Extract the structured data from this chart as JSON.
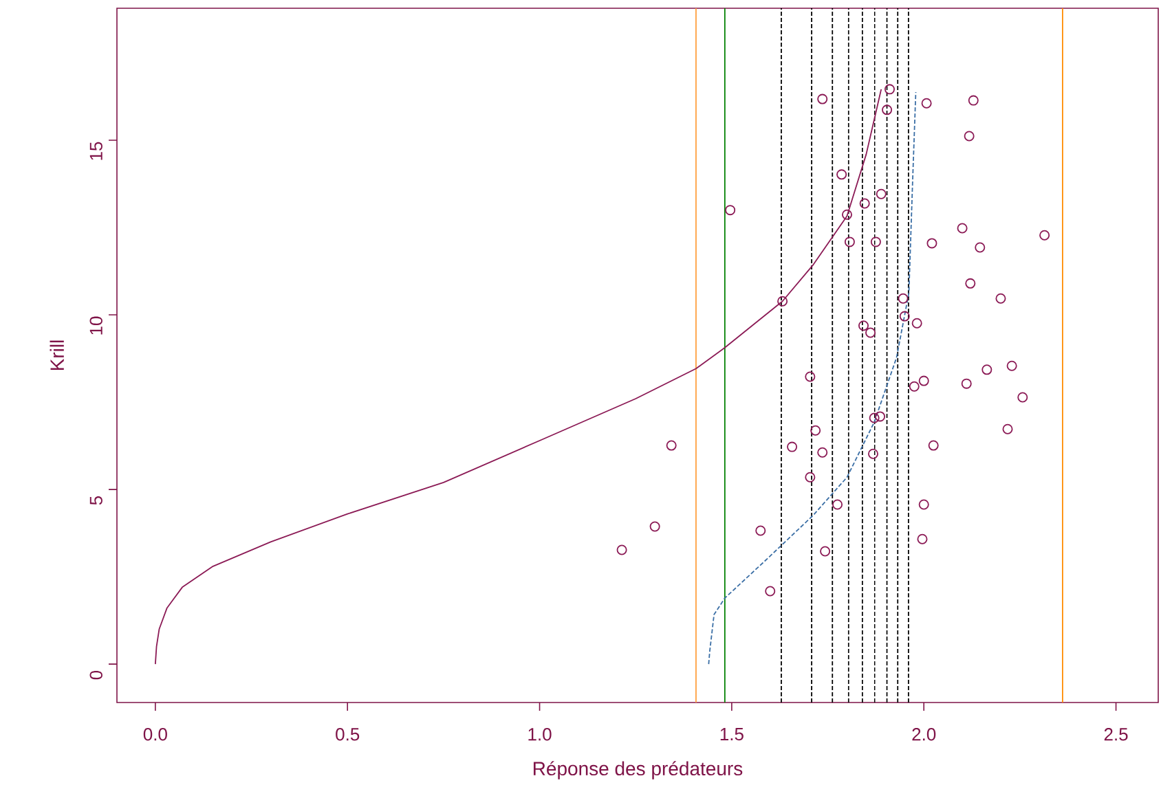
{
  "chart_data": {
    "type": "scatter",
    "xlabel": "Réponse des prédateurs",
    "ylabel": "Krill",
    "xlim": [
      -0.1,
      2.61
    ],
    "ylim": [
      -1.1,
      18.78
    ],
    "xticks": [
      {
        "value": 0,
        "label": "0.0"
      },
      {
        "value": 0.5,
        "label": "0.5"
      },
      {
        "value": 1,
        "label": "1.0"
      },
      {
        "value": 1.5,
        "label": "1.5"
      },
      {
        "value": 2,
        "label": "2.0"
      },
      {
        "value": 2.5,
        "label": "2.5"
      }
    ],
    "yticks": [
      0,
      5,
      10,
      15
    ],
    "grid": false,
    "series": [
      {
        "color": "#8b1a55",
        "marker": "circle",
        "x": [
          1.496,
          1.911,
          1.736,
          1.904,
          2.007,
          2.129,
          2.118,
          1.786,
          1.889,
          1.846,
          1.8,
          1.807,
          1.875,
          2.1,
          2.021,
          2.146,
          2.314,
          1.632,
          1.946,
          1.95,
          1.843,
          1.861,
          1.982,
          2.121,
          2.2,
          1.704,
          1.975,
          2.0,
          2.164,
          2.229,
          2.111,
          2.257,
          1.718,
          1.871,
          1.886,
          2.025,
          2.218,
          1.343,
          1.657,
          1.736,
          1.868,
          1.704,
          1.3,
          1.214,
          1.575,
          1.775,
          1.743,
          1.6,
          2.0,
          1.996
        ],
        "values": [
          13.0,
          16.46,
          16.18,
          15.87,
          16.06,
          16.14,
          15.12,
          14.02,
          13.46,
          13.19,
          12.87,
          12.09,
          12.09,
          12.48,
          12.05,
          11.93,
          12.28,
          10.39,
          10.47,
          9.96,
          9.69,
          9.49,
          9.76,
          10.9,
          10.47,
          8.23,
          7.95,
          8.11,
          8.43,
          8.54,
          8.03,
          7.64,
          6.69,
          7.05,
          7.09,
          6.26,
          6.73,
          6.26,
          6.22,
          6.06,
          6.02,
          5.35,
          3.94,
          3.27,
          3.82,
          4.57,
          3.23,
          2.09,
          4.57,
          3.58
        ]
      },
      {
        "type": "line",
        "color": "#8b1a55",
        "marker": "none",
        "line_style": "solid",
        "x": [
          0,
          0.003,
          0.01,
          0.03,
          0.07,
          0.15,
          0.3,
          0.5,
          0.75,
          1.0,
          1.25,
          1.407,
          1.482,
          1.632,
          1.711,
          1.8,
          1.85,
          1.889
        ],
        "values": [
          0,
          0.5,
          1.0,
          1.6,
          2.2,
          2.8,
          3.5,
          4.3,
          5.2,
          6.4,
          7.6,
          8.46,
          9.06,
          10.39,
          11.42,
          12.83,
          14.6,
          16.46
        ]
      },
      {
        "type": "line",
        "color": "#3a6ea5",
        "marker": "none",
        "line_style": "dashed",
        "x": [
          1.44,
          1.443,
          1.454,
          1.482,
          1.586,
          1.711,
          1.8,
          1.871,
          1.929,
          1.961,
          1.971,
          1.979
        ],
        "values": [
          0,
          0.39,
          1.42,
          1.89,
          2.95,
          4.25,
          5.35,
          6.93,
          8.78,
          10.63,
          13.9,
          16.38
        ]
      }
    ],
    "ref_lines": [
      {
        "axis": "x",
        "value": 1.407,
        "color": "#ffa040",
        "line_style": "solid"
      },
      {
        "axis": "x",
        "value": 2.361,
        "color": "#ff8c00",
        "line_style": "solid"
      },
      {
        "axis": "x",
        "value": 1.482,
        "color": "#008000",
        "line_style": "solid"
      },
      {
        "axis": "x",
        "value": 1.629,
        "color": "#000000",
        "line_style": "dashed"
      },
      {
        "axis": "x",
        "value": 1.708,
        "color": "#000000",
        "line_style": "dashed"
      },
      {
        "axis": "x",
        "value": 1.762,
        "color": "#000000",
        "line_style": "dashed"
      },
      {
        "axis": "x",
        "value": 1.804,
        "color": "#000000",
        "line_style": "dashed"
      },
      {
        "axis": "x",
        "value": 1.84,
        "color": "#000000",
        "line_style": "dashed"
      },
      {
        "axis": "x",
        "value": 1.872,
        "color": "#000000",
        "line_style": "dashed"
      },
      {
        "axis": "x",
        "value": 1.904,
        "color": "#000000",
        "line_style": "dashed"
      },
      {
        "axis": "x",
        "value": 1.932,
        "color": "#000000",
        "line_style": "dashed"
      },
      {
        "axis": "x",
        "value": 1.96,
        "color": "#000000",
        "line_style": "dashed"
      }
    ]
  }
}
